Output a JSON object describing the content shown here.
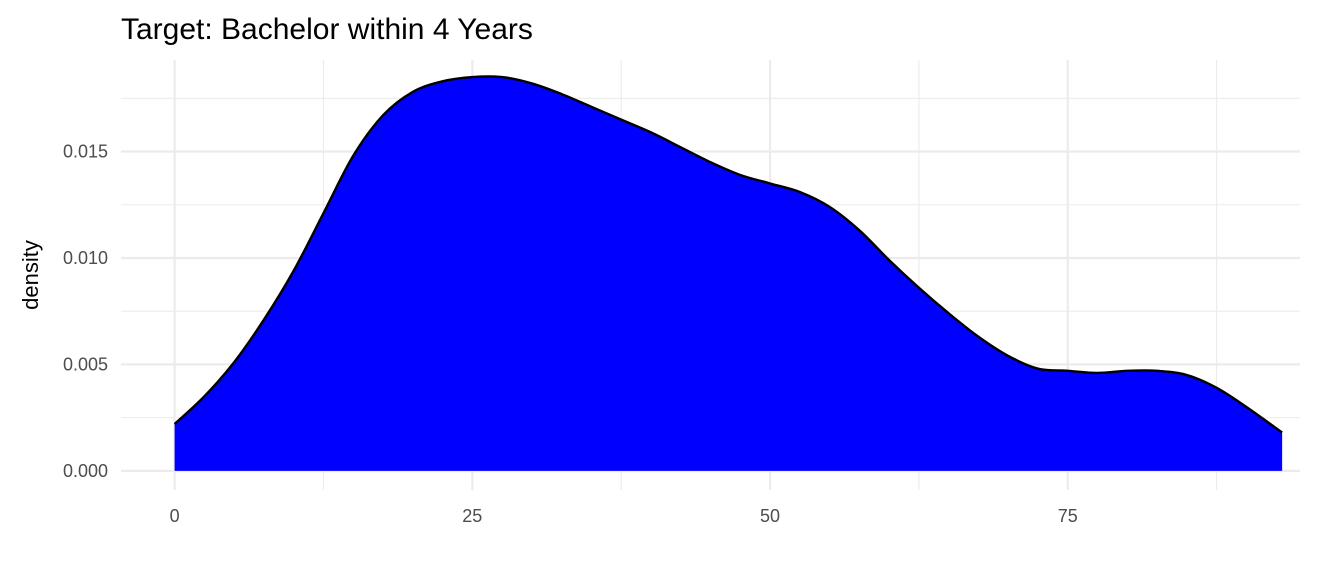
{
  "chart_data": {
    "type": "area",
    "title": "Target: Bachelor within 4 Years",
    "xlabel": "",
    "ylabel": "density",
    "xlim": [
      -4.5,
      94.5
    ],
    "ylim": [
      -0.0009,
      0.0193
    ],
    "x_ticks": [
      0,
      25,
      50,
      75
    ],
    "x_tick_labels": [
      "0",
      "25",
      "50",
      "75"
    ],
    "x_minor_ticks": [
      12.5,
      37.5,
      62.5,
      87.5
    ],
    "y_ticks": [
      0.0,
      0.005,
      0.01,
      0.015
    ],
    "y_tick_labels": [
      "0.000",
      "0.005",
      "0.010",
      "0.015"
    ],
    "y_minor_ticks": [
      0.0025,
      0.0075,
      0.0125,
      0.0175
    ],
    "grid": true,
    "fill_color": "#0000ff",
    "line_color": "#000000",
    "grid_color": "#ebebeb",
    "x": [
      0,
      2.5,
      5,
      7.5,
      10,
      12.5,
      15,
      17.5,
      20,
      22.5,
      25,
      27.5,
      30,
      32.5,
      35,
      37.5,
      40,
      42.5,
      45,
      47.5,
      50,
      52.5,
      55,
      57.5,
      60,
      62.5,
      65,
      67.5,
      70,
      72.5,
      75,
      77.5,
      80,
      82.5,
      85,
      87.5,
      90,
      93
    ],
    "y": [
      0.0022,
      0.0035,
      0.0051,
      0.0071,
      0.0094,
      0.0121,
      0.0148,
      0.0167,
      0.0178,
      0.0183,
      0.0185,
      0.0185,
      0.0182,
      0.0177,
      0.0171,
      0.0165,
      0.0159,
      0.0152,
      0.0145,
      0.0139,
      0.0135,
      0.0131,
      0.0124,
      0.0113,
      0.0099,
      0.0086,
      0.0074,
      0.0063,
      0.0054,
      0.0048,
      0.0047,
      0.0046,
      0.0047,
      0.0047,
      0.0045,
      0.0039,
      0.003,
      0.0018
    ]
  }
}
